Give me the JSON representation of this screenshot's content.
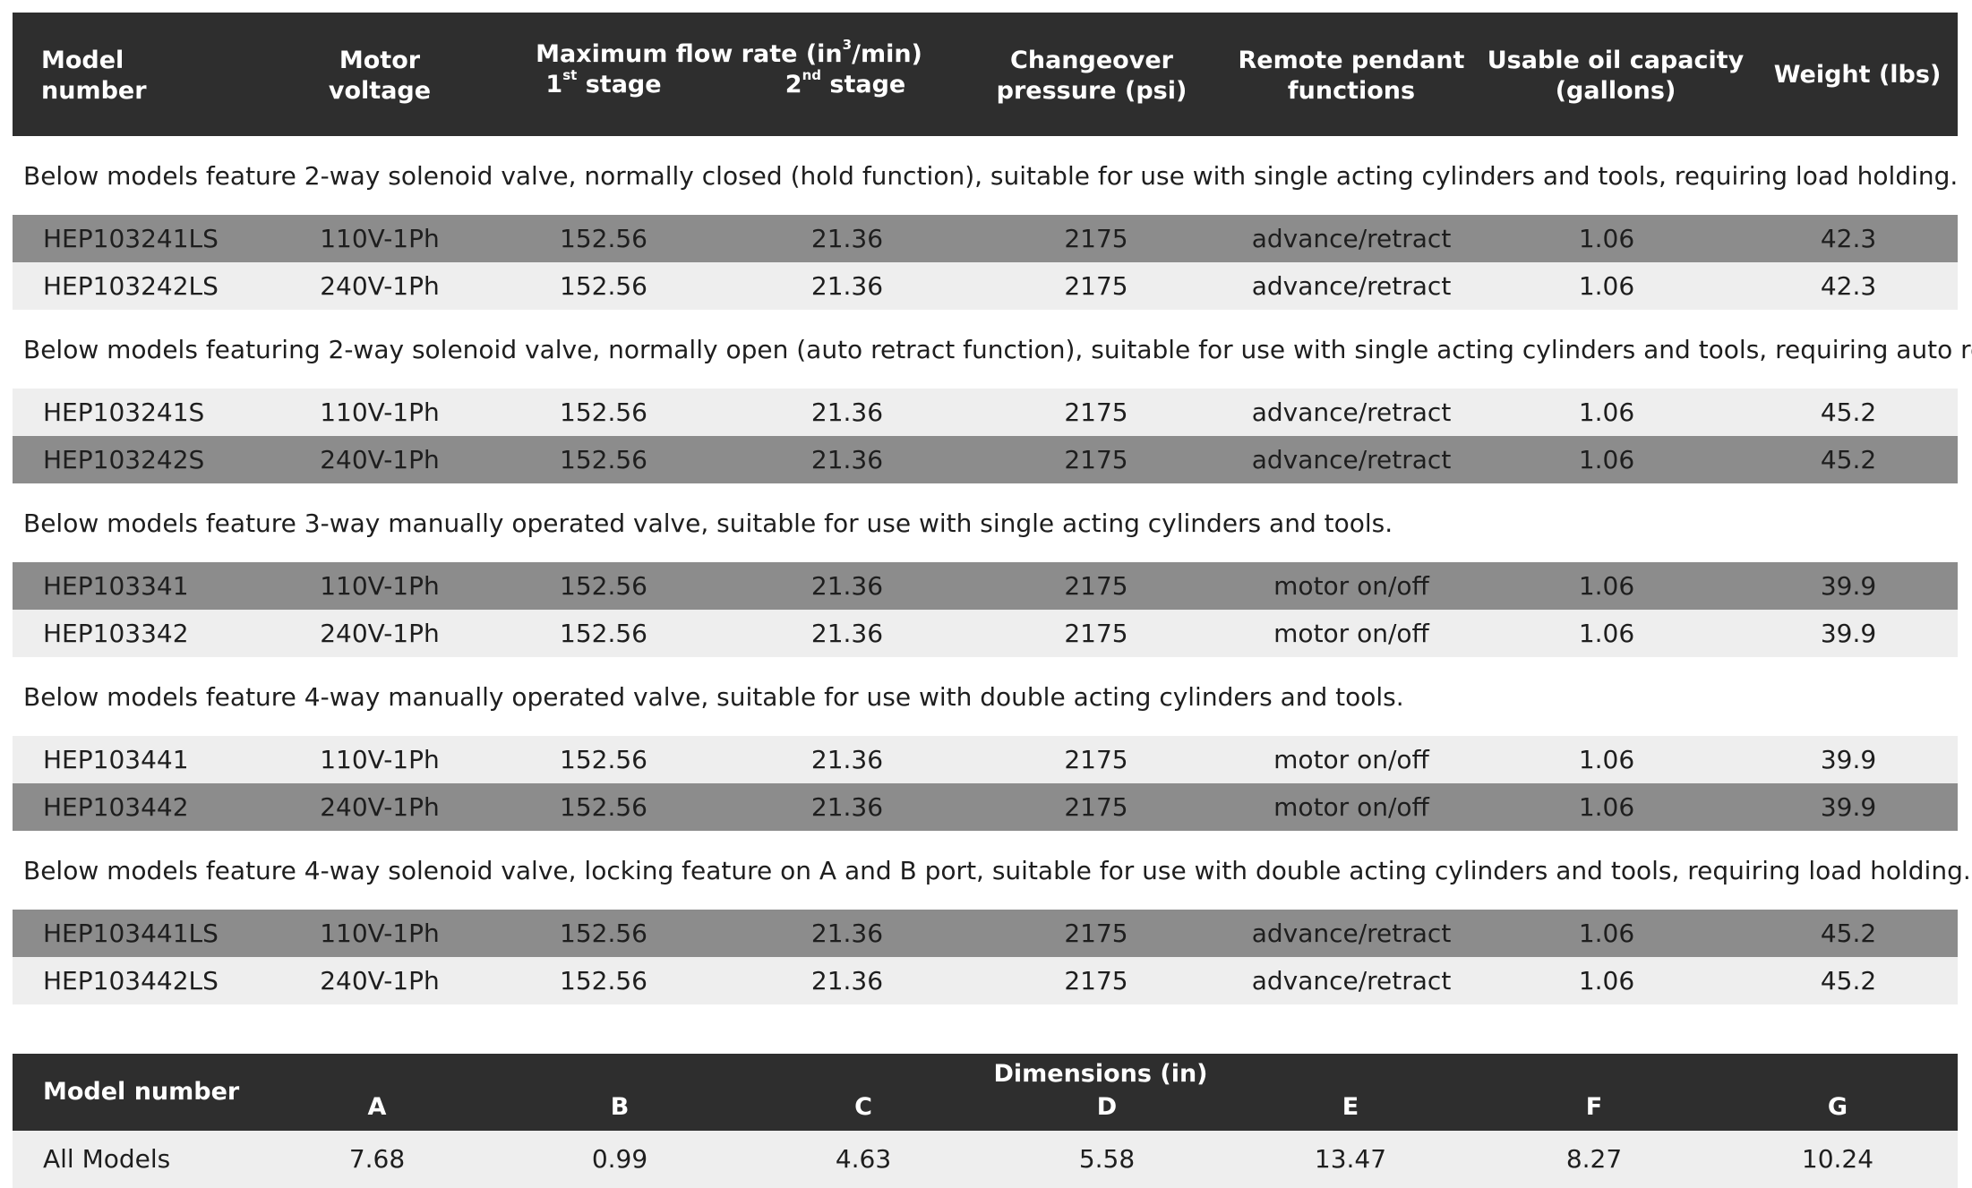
{
  "header": {
    "model_l1": "Model",
    "model_l2": "number",
    "voltage_l1": "Motor",
    "voltage_l2": "voltage",
    "flow_title_pre": "Maximum flow rate (in",
    "flow_title_sup": "3",
    "flow_title_post": "/min)",
    "stage1_num": "1",
    "stage1_sup": "st",
    "stage1_word": " stage",
    "stage2_num": "2",
    "stage2_sup": "nd",
    "stage2_word": " stage",
    "pressure_l1": "Changeover",
    "pressure_l2": "pressure (psi)",
    "pendant_l1": "Remote pendant",
    "pendant_l2": "functions",
    "oil_l1": "Usable oil capacity",
    "oil_l2": "(gallons)",
    "weight": "Weight (lbs)"
  },
  "groups": [
    {
      "note": "Below models feature 2-way solenoid valve, normally closed (hold function), suitable for use with single acting cylinders and tools, requiring load holding.",
      "rows": [
        {
          "shade": "dark",
          "model": "HEP103241LS",
          "voltage": "110V-1Ph",
          "stage1": "152.56",
          "stage2": "21.36",
          "pressure": "2175",
          "pendant": "advance/retract",
          "oil": "1.06",
          "weight": "42.3"
        },
        {
          "shade": "light",
          "model": "HEP103242LS",
          "voltage": "240V-1Ph",
          "stage1": "152.56",
          "stage2": "21.36",
          "pressure": "2175",
          "pendant": "advance/retract",
          "oil": "1.06",
          "weight": "42.3"
        }
      ]
    },
    {
      "note": "Below models featuring 2-way solenoid valve, normally open (auto retract function), suitable for use with single acting cylinders and tools, requiring auto retract.",
      "rows": [
        {
          "shade": "light",
          "model": "HEP103241S",
          "voltage": "110V-1Ph",
          "stage1": "152.56",
          "stage2": "21.36",
          "pressure": "2175",
          "pendant": "advance/retract",
          "oil": "1.06",
          "weight": "45.2"
        },
        {
          "shade": "dark",
          "model": "HEP103242S",
          "voltage": "240V-1Ph",
          "stage1": "152.56",
          "stage2": "21.36",
          "pressure": "2175",
          "pendant": "advance/retract",
          "oil": "1.06",
          "weight": "45.2"
        }
      ]
    },
    {
      "note": "Below models feature 3-way manually operated valve, suitable for use with single acting cylinders and tools.",
      "rows": [
        {
          "shade": "dark",
          "model": "HEP103341",
          "voltage": "110V-1Ph",
          "stage1": "152.56",
          "stage2": "21.36",
          "pressure": "2175",
          "pendant": "motor on/off",
          "oil": "1.06",
          "weight": "39.9"
        },
        {
          "shade": "light",
          "model": "HEP103342",
          "voltage": "240V-1Ph",
          "stage1": "152.56",
          "stage2": "21.36",
          "pressure": "2175",
          "pendant": "motor on/off",
          "oil": "1.06",
          "weight": "39.9"
        }
      ]
    },
    {
      "note": "Below models feature 4-way manually operated valve, suitable for use with double acting cylinders and tools.",
      "rows": [
        {
          "shade": "light",
          "model": "HEP103441",
          "voltage": "110V-1Ph",
          "stage1": "152.56",
          "stage2": "21.36",
          "pressure": "2175",
          "pendant": "motor on/off",
          "oil": "1.06",
          "weight": "39.9"
        },
        {
          "shade": "dark",
          "model": "HEP103442",
          "voltage": "240V-1Ph",
          "stage1": "152.56",
          "stage2": "21.36",
          "pressure": "2175",
          "pendant": "motor on/off",
          "oil": "1.06",
          "weight": "39.9"
        }
      ]
    },
    {
      "note": "Below models feature 4-way solenoid valve, locking feature on A and B port, suitable for use with double acting cylinders and tools, requiring load holding.",
      "rows": [
        {
          "shade": "dark",
          "model": "HEP103441LS",
          "voltage": "110V-1Ph",
          "stage1": "152.56",
          "stage2": "21.36",
          "pressure": "2175",
          "pendant": "advance/retract",
          "oil": "1.06",
          "weight": "45.2"
        },
        {
          "shade": "light",
          "model": "HEP103442LS",
          "voltage": "240V-1Ph",
          "stage1": "152.56",
          "stage2": "21.36",
          "pressure": "2175",
          "pendant": "advance/retract",
          "oil": "1.06",
          "weight": "45.2"
        }
      ]
    }
  ],
  "dimensions": {
    "model_header": "Model number",
    "title": "Dimensions (in)",
    "columns": [
      "A",
      "B",
      "C",
      "D",
      "E",
      "F",
      "G"
    ],
    "row": {
      "model": "All Models",
      "values": [
        "7.68",
        "0.99",
        "4.63",
        "5.58",
        "13.47",
        "8.27",
        "10.24"
      ]
    }
  }
}
